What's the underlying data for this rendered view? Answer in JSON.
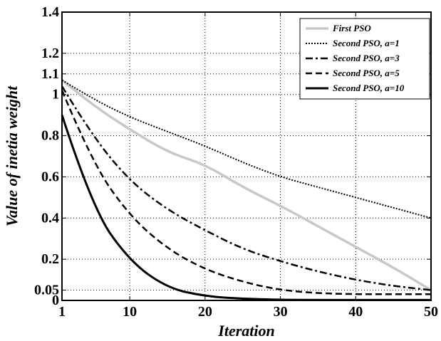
{
  "chart_data": {
    "type": "line",
    "title": "",
    "xlabel": "Iteration",
    "ylabel": "Value of inetia weight",
    "xlim": [
      1,
      50
    ],
    "ylim": [
      0,
      1.4
    ],
    "xticks": [
      1,
      10,
      20,
      30,
      40,
      50
    ],
    "yticks": [
      0,
      0.05,
      0.2,
      0.4,
      0.6,
      0.8,
      1,
      1.1,
      1.2,
      1.4
    ],
    "grid": true,
    "legend_position": "top-right",
    "x": [
      1,
      5,
      10,
      15,
      20,
      25,
      30,
      35,
      40,
      45,
      50
    ],
    "series": [
      {
        "name": "First PSO",
        "style": "solid",
        "color": "#c8c8c8",
        "width": 3.5,
        "dash": "",
        "values": [
          1.07,
          0.95,
          0.83,
          0.72,
          0.66,
          0.55,
          0.46,
          0.36,
          0.26,
          0.16,
          0.05
        ]
      },
      {
        "name": "Second PSO, a=1",
        "style": "dotted",
        "color": "#000000",
        "width": 2,
        "dash": "2 2",
        "values": [
          1.07,
          0.98,
          0.89,
          0.82,
          0.75,
          0.67,
          0.6,
          0.55,
          0.5,
          0.45,
          0.4
        ]
      },
      {
        "name": "Second PSO, a=3",
        "style": "dash-dot",
        "color": "#000000",
        "width": 2.5,
        "dash": "10 4 3 4",
        "values": [
          1.04,
          0.8,
          0.58,
          0.44,
          0.34,
          0.25,
          0.19,
          0.14,
          0.1,
          0.07,
          0.05
        ]
      },
      {
        "name": "Second PSO, a=5",
        "style": "dashed",
        "color": "#000000",
        "width": 2.5,
        "dash": "9 5",
        "values": [
          1.02,
          0.67,
          0.41,
          0.25,
          0.15,
          0.09,
          0.05,
          0.035,
          0.03,
          0.03,
          0.03
        ]
      },
      {
        "name": "Second PSO, a=10",
        "style": "solid",
        "color": "#000000",
        "width": 3,
        "dash": "",
        "values": [
          0.9,
          0.45,
          0.19,
          0.06,
          0.02,
          0.008,
          0.003,
          0.002,
          0.002,
          0.002,
          0.002
        ]
      }
    ]
  }
}
